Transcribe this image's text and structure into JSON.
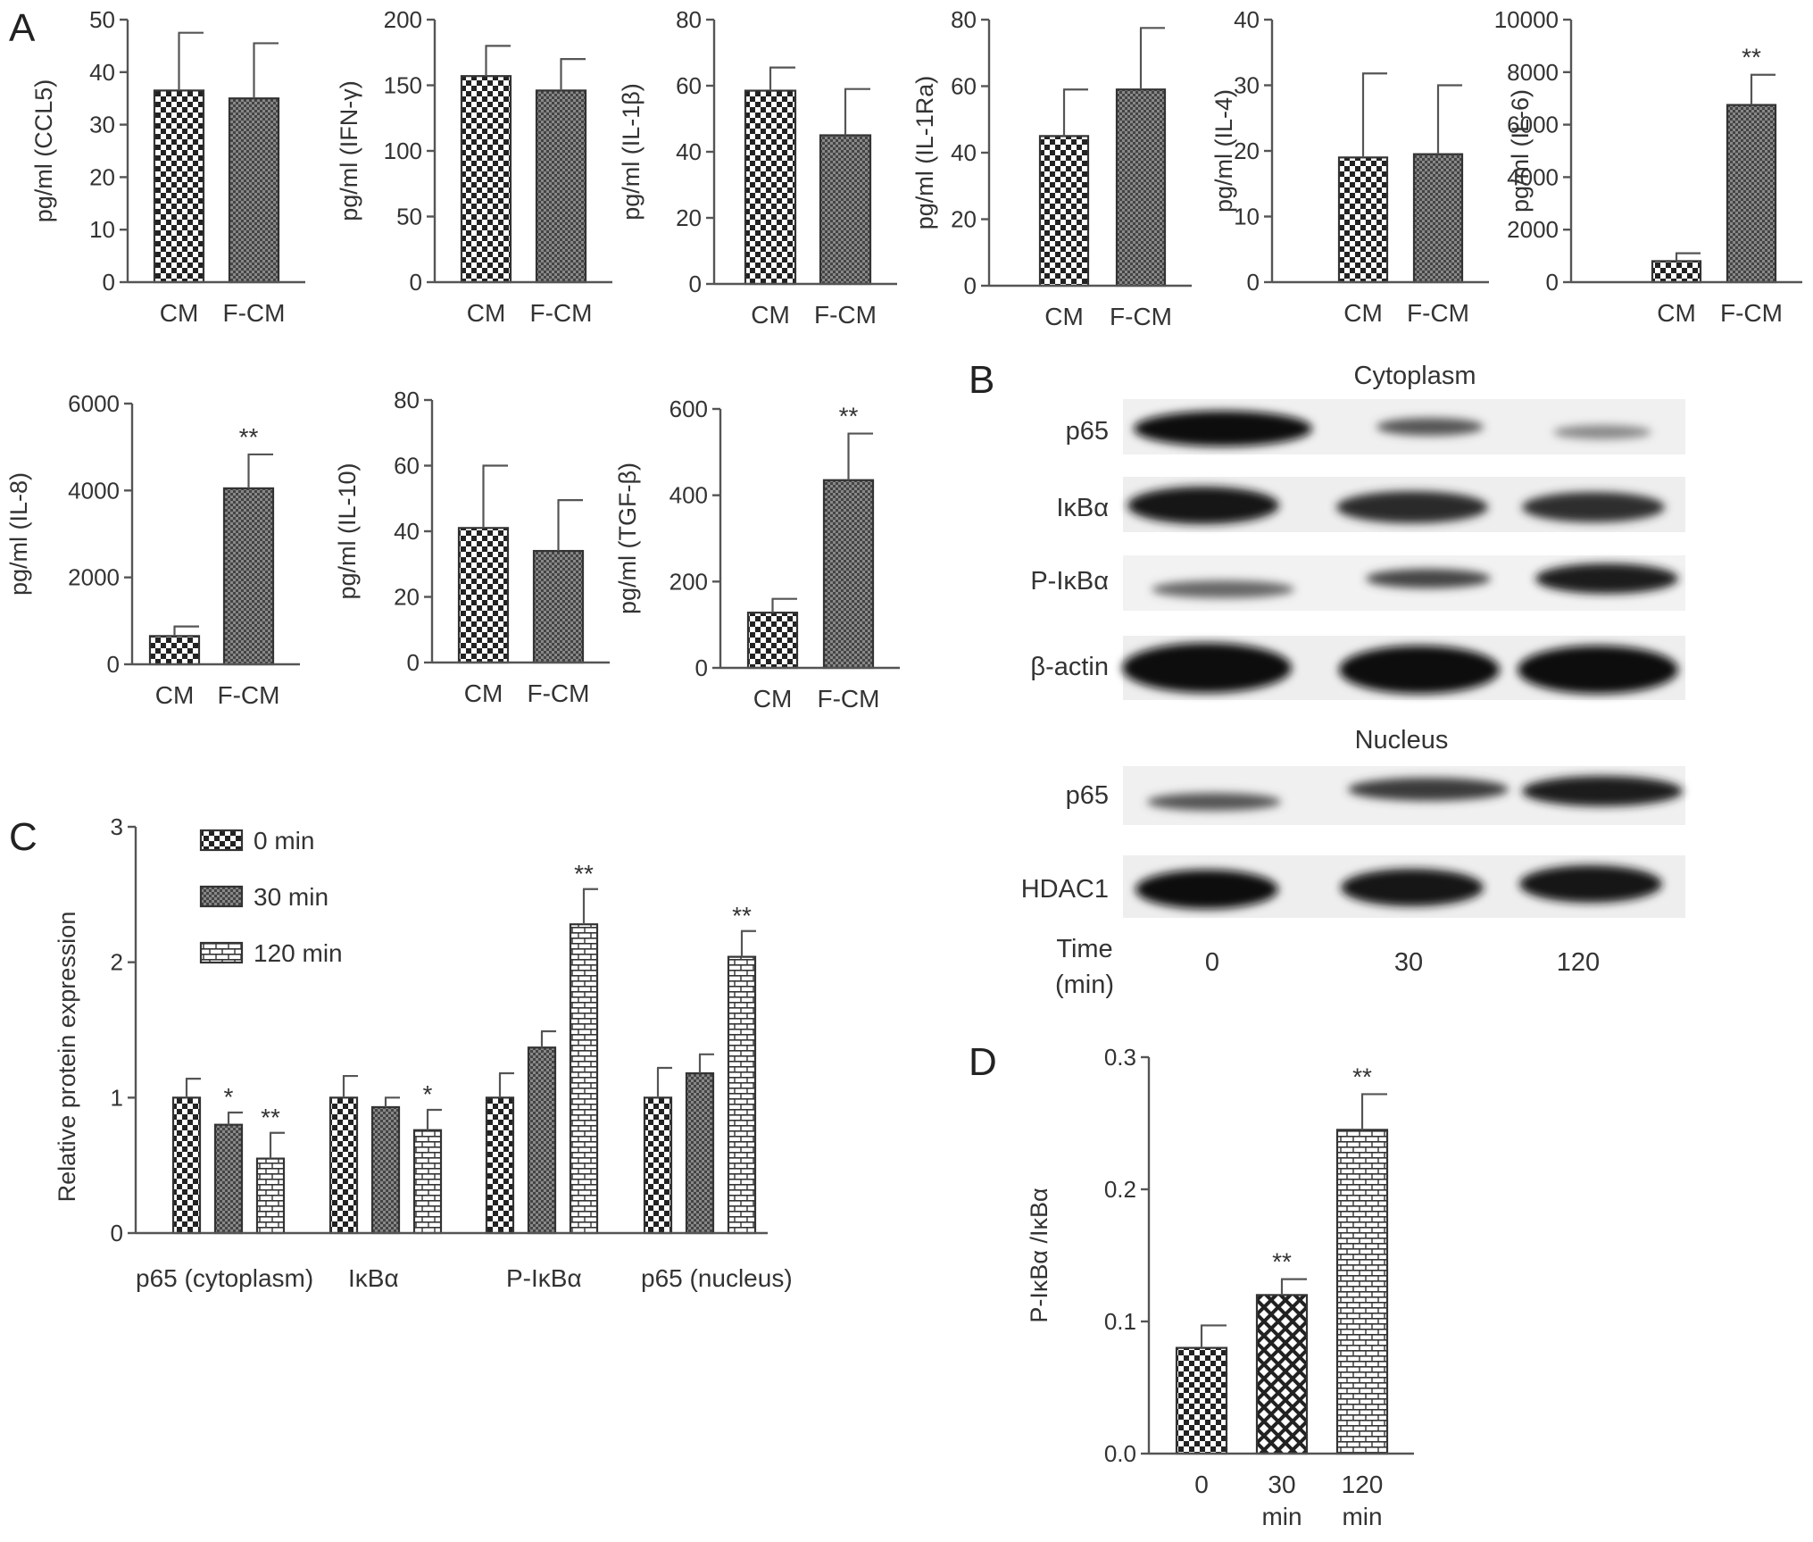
{
  "figure": {
    "panel_labels": {
      "A": "A",
      "B": "B",
      "C": "C",
      "D": "D"
    }
  },
  "colors": {
    "axis": "#555555",
    "bar_edge": "#333333",
    "text": "#333333"
  },
  "chart_data": [
    {
      "id": "A1",
      "type": "bar",
      "ylabel": "pg/ml (CCL5)",
      "categories": [
        "CM",
        "F-CM"
      ],
      "values": [
        36.5,
        35
      ],
      "errors": [
        11,
        10.5
      ],
      "ylim": [
        0,
        50
      ],
      "yticks": [
        0,
        10,
        20,
        30,
        40,
        50
      ],
      "significance": [
        "",
        ""
      ],
      "patterns": [
        "checker",
        "dense"
      ]
    },
    {
      "id": "A2",
      "type": "bar",
      "ylabel": "pg/ml (IFN-γ)",
      "categories": [
        "CM",
        "F-CM"
      ],
      "values": [
        157,
        146
      ],
      "errors": [
        23,
        24
      ],
      "ylim": [
        0,
        200
      ],
      "yticks": [
        0,
        50,
        100,
        150,
        200
      ],
      "significance": [
        "",
        ""
      ],
      "patterns": [
        "checker",
        "dense"
      ]
    },
    {
      "id": "A3",
      "type": "bar",
      "ylabel": "pg/ml (IL-1β)",
      "categories": [
        "CM",
        "F-CM"
      ],
      "values": [
        58.5,
        45
      ],
      "errors": [
        7,
        14
      ],
      "ylim": [
        0,
        80
      ],
      "yticks": [
        0,
        20,
        40,
        60,
        80
      ],
      "significance": [
        "",
        ""
      ],
      "patterns": [
        "checker",
        "dense"
      ]
    },
    {
      "id": "A4",
      "type": "bar",
      "ylabel": "pg/ml (IL-1Ra)",
      "categories": [
        "CM",
        "F-CM"
      ],
      "values": [
        45,
        59
      ],
      "errors": [
        14,
        18.5
      ],
      "ylim": [
        0,
        80
      ],
      "yticks": [
        0,
        20,
        40,
        60,
        80
      ],
      "significance": [
        "",
        ""
      ],
      "patterns": [
        "checker",
        "dense"
      ]
    },
    {
      "id": "A5",
      "type": "bar",
      "ylabel": "pg/ml (IL-4)",
      "categories": [
        "CM",
        "F-CM"
      ],
      "values": [
        19,
        19.5
      ],
      "errors": [
        12.8,
        10.5
      ],
      "ylim": [
        0,
        40
      ],
      "yticks": [
        0,
        10,
        20,
        30,
        40
      ],
      "significance": [
        "",
        ""
      ],
      "patterns": [
        "checker",
        "dense"
      ]
    },
    {
      "id": "A6",
      "type": "bar",
      "ylabel": "pg/ml (IL-6)",
      "categories": [
        "CM",
        "F-CM"
      ],
      "values": [
        800,
        6750
      ],
      "errors": [
        300,
        1150
      ],
      "ylim": [
        0,
        10000
      ],
      "yticks": [
        0,
        2000,
        4000,
        6000,
        8000,
        10000
      ],
      "significance": [
        "",
        "**"
      ],
      "patterns": [
        "checker",
        "dense"
      ]
    },
    {
      "id": "A7",
      "type": "bar",
      "ylabel": "pg/ml (IL-8)",
      "categories": [
        "CM",
        "F-CM"
      ],
      "values": [
        650,
        4050
      ],
      "errors": [
        220,
        780
      ],
      "ylim": [
        0,
        6000
      ],
      "yticks": [
        0,
        2000,
        4000,
        6000
      ],
      "significance": [
        "",
        "**"
      ],
      "patterns": [
        "checker",
        "dense"
      ]
    },
    {
      "id": "A8",
      "type": "bar",
      "ylabel": "pg/ml (IL-10)",
      "categories": [
        "CM",
        "F-CM"
      ],
      "values": [
        41,
        34
      ],
      "errors": [
        19,
        15.5
      ],
      "ylim": [
        0,
        80
      ],
      "yticks": [
        0,
        20,
        40,
        60,
        80
      ],
      "significance": [
        "",
        ""
      ],
      "patterns": [
        "checker",
        "dense"
      ]
    },
    {
      "id": "A9",
      "type": "bar",
      "ylabel": "pg/ml (TGF-β)",
      "categories": [
        "CM",
        "F-CM"
      ],
      "values": [
        128,
        435
      ],
      "errors": [
        32,
        108
      ],
      "ylim": [
        0,
        600
      ],
      "yticks": [
        0,
        200,
        400,
        600
      ],
      "significance": [
        "",
        "**"
      ],
      "patterns": [
        "checker",
        "dense"
      ]
    },
    {
      "id": "C",
      "type": "bar",
      "ylabel": "Relative protein expression",
      "categories": [
        "p65 (cytoplasm)",
        "IκBα",
        "P-IκBα",
        "p65 (nucleus)"
      ],
      "ylim": [
        0,
        3
      ],
      "yticks": [
        0,
        1,
        2,
        3
      ],
      "series": [
        {
          "name": "0  min",
          "values": [
            1.0,
            1.0,
            1.0,
            1.0
          ],
          "errors": [
            0.14,
            0.16,
            0.18,
            0.22
          ],
          "significance": [
            "",
            "",
            "",
            ""
          ],
          "pattern": "checker"
        },
        {
          "name": "30  min",
          "values": [
            0.8,
            0.93,
            1.37,
            1.18
          ],
          "errors": [
            0.09,
            0.07,
            0.12,
            0.14
          ],
          "significance": [
            "*",
            "",
            "",
            ""
          ],
          "pattern": "dense"
        },
        {
          "name": "120  min",
          "values": [
            0.55,
            0.76,
            2.28,
            2.04
          ],
          "errors": [
            0.19,
            0.15,
            0.26,
            0.19
          ],
          "significance": [
            "**",
            "*",
            "**",
            "**"
          ],
          "pattern": "brick"
        }
      ]
    },
    {
      "id": "D",
      "type": "bar",
      "ylabel": "P-IκBα /IκBα",
      "categories": [
        "0",
        "30\nmin",
        "120\nmin"
      ],
      "values": [
        0.08,
        0.12,
        0.245
      ],
      "errors": [
        0.017,
        0.012,
        0.027
      ],
      "ylim": [
        0,
        0.3
      ],
      "yticks": [
        "0.0",
        "0.1",
        "0.2",
        "0.3"
      ],
      "significance": [
        "",
        "**",
        "**"
      ],
      "patterns": [
        "checker",
        "diamond",
        "brick"
      ]
    }
  ],
  "western_blot": {
    "section_cyto": "Cytoplasm",
    "section_nuc": "Nucleus",
    "rows_cyto": [
      "p65",
      "IκBα",
      "P-IκBα",
      "β-actin"
    ],
    "rows_nuc": [
      "p65",
      "HDAC1"
    ],
    "time_label_1": "Time",
    "time_label_2": "(min)",
    "lanes": [
      "0",
      "30",
      "120"
    ]
  }
}
